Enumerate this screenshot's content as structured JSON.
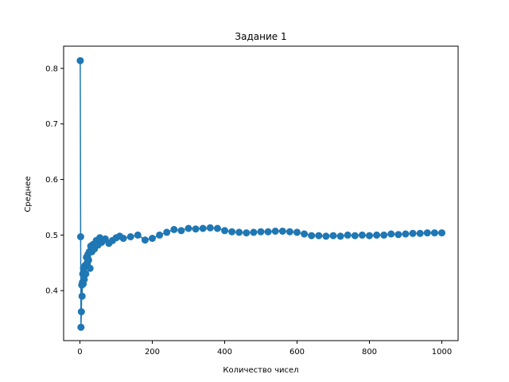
{
  "chart_data": {
    "type": "line",
    "title": "Задание 1",
    "xlabel": "Количество чисел",
    "ylabel": "Среднее",
    "xlim": [
      -45,
      1045
    ],
    "ylim": [
      0.31,
      0.84
    ],
    "xticks": [
      0,
      200,
      400,
      600,
      800,
      1000
    ],
    "yticks": [
      0.4,
      0.5,
      0.6,
      0.7,
      0.8
    ],
    "xtick_labels": [
      "0",
      "200",
      "400",
      "600",
      "800",
      "1000"
    ],
    "ytick_labels": [
      "0.4",
      "0.5",
      "0.6",
      "0.7",
      "0.8"
    ],
    "grid": false,
    "series": [
      {
        "color": "#1f77b4",
        "marker": "circle",
        "x": [
          1,
          2,
          3,
          4,
          5,
          6,
          7,
          8,
          9,
          10,
          12,
          14,
          16,
          18,
          20,
          22,
          24,
          26,
          28,
          30,
          33,
          36,
          40,
          45,
          50,
          55,
          60,
          70,
          80,
          90,
          100,
          110,
          120,
          140,
          160,
          180,
          200,
          220,
          240,
          260,
          280,
          300,
          320,
          340,
          360,
          380,
          400,
          420,
          440,
          460,
          480,
          500,
          520,
          540,
          560,
          580,
          600,
          620,
          640,
          660,
          680,
          700,
          720,
          740,
          760,
          780,
          800,
          820,
          840,
          860,
          880,
          900,
          920,
          940,
          960,
          980,
          1000
        ],
        "y": [
          0.814,
          0.497,
          0.334,
          0.362,
          0.41,
          0.39,
          0.415,
          0.43,
          0.412,
          0.44,
          0.42,
          0.445,
          0.43,
          0.46,
          0.45,
          0.465,
          0.455,
          0.47,
          0.44,
          0.48,
          0.47,
          0.483,
          0.475,
          0.49,
          0.482,
          0.495,
          0.487,
          0.493,
          0.485,
          0.49,
          0.495,
          0.498,
          0.494,
          0.497,
          0.5,
          0.491,
          0.494,
          0.5,
          0.505,
          0.51,
          0.508,
          0.512,
          0.511,
          0.512,
          0.513,
          0.512,
          0.508,
          0.506,
          0.505,
          0.504,
          0.505,
          0.506,
          0.506,
          0.507,
          0.507,
          0.506,
          0.505,
          0.502,
          0.499,
          0.499,
          0.498,
          0.499,
          0.498,
          0.5,
          0.499,
          0.5,
          0.499,
          0.5,
          0.5,
          0.502,
          0.501,
          0.502,
          0.503,
          0.503,
          0.504,
          0.504,
          0.504
        ]
      }
    ]
  }
}
